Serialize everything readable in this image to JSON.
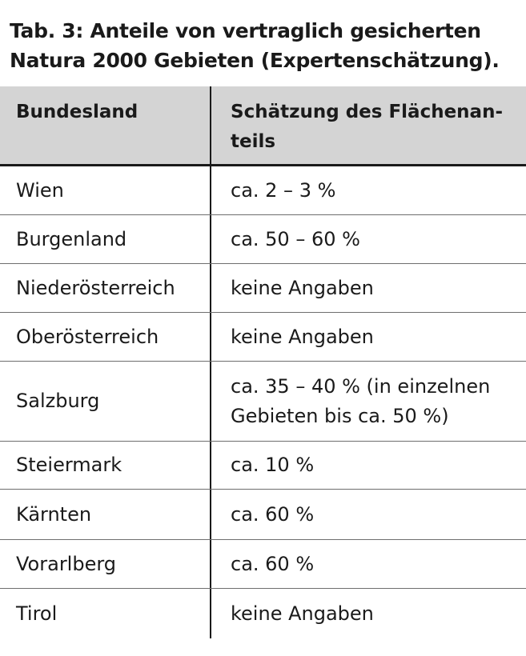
{
  "caption": {
    "line1": "Tab. 3: Anteile von vertraglich gesicherten",
    "line2": "Natura 2000 Gebieten (Expertenschätzung)."
  },
  "table": {
    "headers": {
      "col1": "Bundesland",
      "col2_line1": "Schätzung des Flächenan-",
      "col2_line2": "teils"
    },
    "rows": [
      {
        "bundesland": "Wien",
        "schaetzung": "ca. 2 – 3 %"
      },
      {
        "bundesland": "Burgenland",
        "schaetzung": "ca. 50 – 60 %"
      },
      {
        "bundesland": "Niederösterreich",
        "schaetzung": "keine Angaben"
      },
      {
        "bundesland": "Oberösterreich",
        "schaetzung": "keine Angaben"
      },
      {
        "bundesland": "Salzburg",
        "schaetzung_line1": "ca. 35 – 40 % (in einzelnen",
        "schaetzung_line2": "Gebieten bis ca. 50 %)"
      },
      {
        "bundesland": "Steiermark",
        "schaetzung": "ca. 10 %"
      },
      {
        "bundesland": "Kärnten",
        "schaetzung": "ca. 60 %"
      },
      {
        "bundesland": "Vorarlberg",
        "schaetzung": "ca. 60 %"
      },
      {
        "bundesland": "Tirol",
        "schaetzung": "keine Angaben"
      }
    ]
  }
}
